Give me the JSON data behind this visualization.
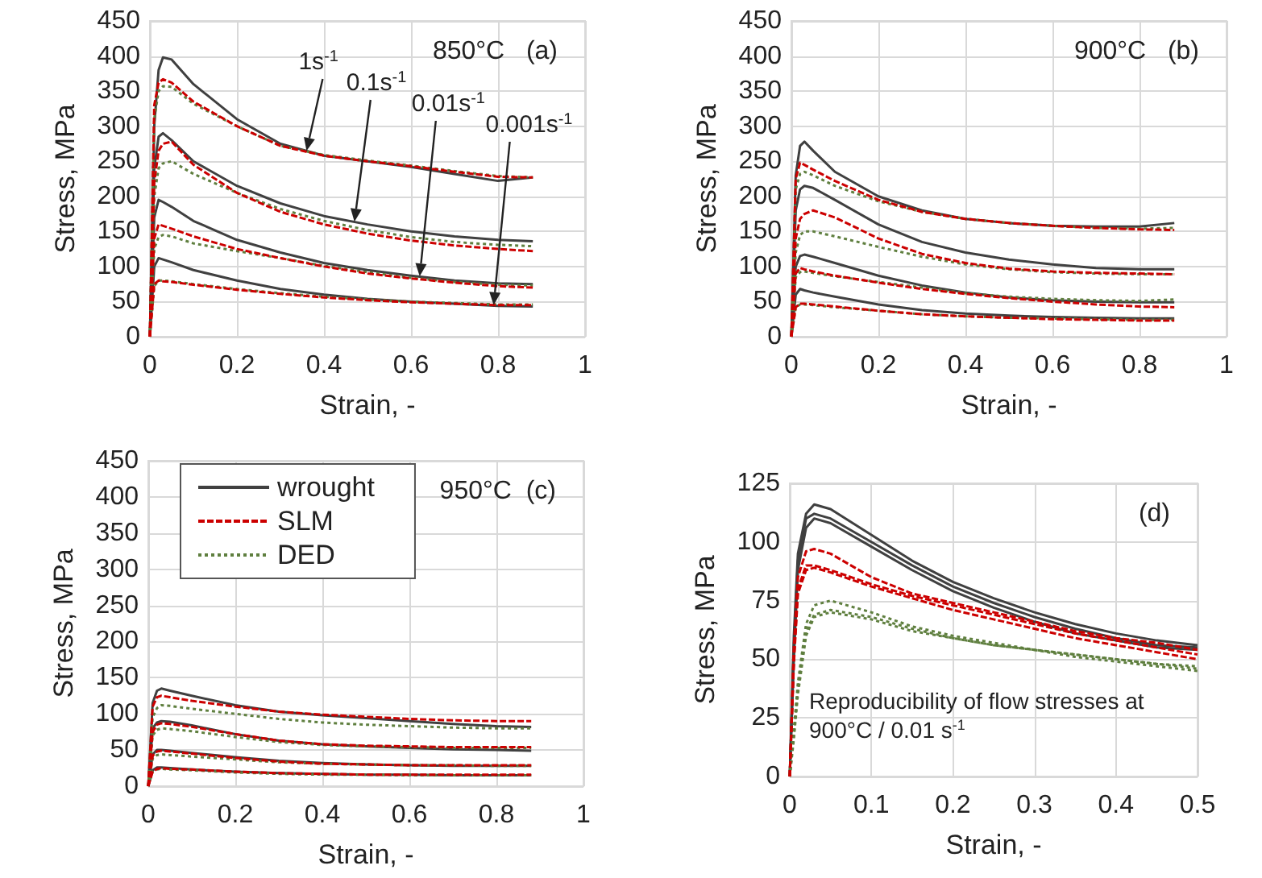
{
  "chart_data": [
    {
      "type": "line",
      "title": "850°C   (a)",
      "xlabel": "Strain, -",
      "ylabel": "Stress, MPa",
      "xlim": [
        0,
        1
      ],
      "xticks": [
        0,
        0.2,
        0.4,
        0.6,
        0.8,
        1
      ],
      "ylim": [
        0,
        450
      ],
      "yticks": [
        0,
        50,
        100,
        150,
        200,
        250,
        300,
        350,
        400,
        450
      ],
      "grid": true,
      "marker": "none",
      "x": [
        0,
        0.01,
        0.02,
        0.03,
        0.05,
        0.1,
        0.2,
        0.3,
        0.4,
        0.5,
        0.6,
        0.7,
        0.8,
        0.88
      ],
      "annotations": [
        {
          "text": "1s$^{-1}$",
          "x": 0.36,
          "y": 265
        },
        {
          "text": "0.1s$^{-1}$",
          "x": 0.47,
          "y": 164
        },
        {
          "text": "0.01s$^{-1}$",
          "x": 0.62,
          "y": 86
        },
        {
          "text": "0.001s$^{-1}$",
          "x": 0.79,
          "y": 45
        }
      ],
      "series": [
        {
          "color": "#404040",
          "line_style": "solid",
          "values": [
            0,
            300,
            380,
            398,
            395,
            360,
            310,
            275,
            258,
            250,
            242,
            232,
            222,
            227
          ]
        },
        {
          "color": "#cc0000",
          "line_style": "dashed",
          "values": [
            0,
            330,
            362,
            367,
            362,
            335,
            300,
            272,
            258,
            250,
            243,
            235,
            228,
            227
          ]
        },
        {
          "color": "#5f7f3f",
          "line_style": "dotted",
          "values": [
            0,
            310,
            350,
            357,
            356,
            332,
            300,
            272,
            259,
            251,
            244,
            236,
            229,
            227
          ]
        },
        {
          "color": "#404040",
          "line_style": "solid",
          "values": [
            0,
            240,
            285,
            290,
            280,
            250,
            215,
            190,
            172,
            160,
            150,
            143,
            138,
            136
          ]
        },
        {
          "color": "#cc0000",
          "line_style": "dashed",
          "values": [
            0,
            220,
            265,
            275,
            278,
            245,
            205,
            178,
            160,
            147,
            137,
            130,
            125,
            122
          ]
        },
        {
          "color": "#5f7f3f",
          "line_style": "dotted",
          "values": [
            0,
            200,
            240,
            247,
            250,
            232,
            205,
            182,
            165,
            152,
            142,
            135,
            131,
            129
          ]
        },
        {
          "color": "#404040",
          "line_style": "solid",
          "values": [
            0,
            170,
            195,
            192,
            185,
            165,
            138,
            120,
            105,
            95,
            87,
            80,
            76,
            75
          ]
        },
        {
          "color": "#cc0000",
          "line_style": "dashed",
          "values": [
            0,
            140,
            160,
            158,
            154,
            143,
            125,
            112,
            100,
            90,
            83,
            77,
            72,
            70
          ]
        },
        {
          "color": "#5f7f3f",
          "line_style": "dotted",
          "values": [
            0,
            125,
            142,
            145,
            143,
            133,
            122,
            112,
            101,
            92,
            84,
            78,
            74,
            73
          ]
        },
        {
          "color": "#404040",
          "line_style": "solid",
          "values": [
            0,
            100,
            112,
            110,
            106,
            95,
            80,
            68,
            60,
            54,
            50,
            47,
            44,
            43
          ]
        },
        {
          "color": "#cc0000",
          "line_style": "dashed",
          "values": [
            0,
            75,
            80,
            79,
            78,
            74,
            67,
            61,
            56,
            52,
            49,
            47,
            45,
            45
          ]
        },
        {
          "color": "#5f7f3f",
          "line_style": "dotted",
          "values": [
            0,
            72,
            80,
            80,
            79,
            75,
            68,
            62,
            57,
            53,
            50,
            48,
            46,
            46
          ]
        }
      ]
    },
    {
      "type": "line",
      "title": "900°C   (b)",
      "xlabel": "Strain, -",
      "ylabel": "Stress, MPa",
      "xlim": [
        0,
        1
      ],
      "xticks": [
        0,
        0.2,
        0.4,
        0.6,
        0.8,
        1
      ],
      "ylim": [
        0,
        450
      ],
      "yticks": [
        0,
        50,
        100,
        150,
        200,
        250,
        300,
        350,
        400,
        450
      ],
      "grid": true,
      "marker": "none",
      "x": [
        0,
        0.01,
        0.02,
        0.03,
        0.05,
        0.1,
        0.2,
        0.3,
        0.4,
        0.5,
        0.6,
        0.7,
        0.8,
        0.88
      ],
      "series": [
        {
          "color": "#404040",
          "line_style": "solid",
          "values": [
            0,
            230,
            272,
            278,
            265,
            235,
            200,
            180,
            168,
            162,
            158,
            157,
            157,
            162
          ]
        },
        {
          "color": "#cc0000",
          "line_style": "dashed",
          "values": [
            0,
            225,
            248,
            245,
            238,
            222,
            195,
            178,
            168,
            162,
            158,
            155,
            153,
            152
          ]
        },
        {
          "color": "#5f7f3f",
          "line_style": "dotted",
          "values": [
            0,
            210,
            232,
            235,
            230,
            215,
            193,
            178,
            168,
            162,
            158,
            155,
            154,
            155
          ]
        },
        {
          "color": "#404040",
          "line_style": "solid",
          "values": [
            0,
            180,
            210,
            215,
            212,
            195,
            160,
            135,
            120,
            110,
            103,
            98,
            96,
            96
          ]
        },
        {
          "color": "#cc0000",
          "line_style": "dashed",
          "values": [
            0,
            140,
            168,
            175,
            180,
            170,
            140,
            118,
            105,
            97,
            93,
            91,
            90,
            89
          ]
        },
        {
          "color": "#5f7f3f",
          "line_style": "dotted",
          "values": [
            0,
            120,
            145,
            150,
            150,
            143,
            128,
            114,
            103,
            96,
            92,
            90,
            89,
            89
          ]
        },
        {
          "color": "#404040",
          "line_style": "solid",
          "values": [
            0,
            100,
            115,
            117,
            114,
            105,
            87,
            73,
            63,
            56,
            52,
            50,
            49,
            49
          ]
        },
        {
          "color": "#cc0000",
          "line_style": "dashed",
          "values": [
            0,
            90,
            98,
            96,
            93,
            87,
            77,
            68,
            61,
            55,
            50,
            46,
            43,
            42
          ]
        },
        {
          "color": "#5f7f3f",
          "line_style": "dotted",
          "values": [
            0,
            85,
            92,
            93,
            91,
            86,
            78,
            70,
            62,
            57,
            54,
            52,
            51,
            53
          ]
        },
        {
          "color": "#404040",
          "line_style": "solid",
          "values": [
            0,
            60,
            68,
            66,
            63,
            57,
            46,
            38,
            33,
            30,
            28,
            27,
            26,
            26
          ]
        },
        {
          "color": "#cc0000",
          "line_style": "dashed",
          "values": [
            0,
            42,
            47,
            47,
            46,
            43,
            37,
            32,
            29,
            27,
            25,
            24,
            23,
            23
          ]
        },
        {
          "color": "#5f7f3f",
          "line_style": "dotted",
          "values": [
            0,
            42,
            46,
            46,
            45,
            42,
            37,
            32,
            29,
            27,
            26,
            25,
            24,
            24
          ]
        }
      ]
    },
    {
      "type": "line",
      "title": "950°C  (c)",
      "xlabel": "Strain, -",
      "ylabel": "Stress, MPa",
      "xlim": [
        0,
        1
      ],
      "xticks": [
        0,
        0.2,
        0.4,
        0.6,
        0.8,
        1
      ],
      "ylim": [
        0,
        450
      ],
      "yticks": [
        0,
        50,
        100,
        150,
        200,
        250,
        300,
        350,
        400,
        450
      ],
      "grid": true,
      "marker": "none",
      "legend": "top left",
      "x": [
        0,
        0.01,
        0.02,
        0.03,
        0.05,
        0.1,
        0.2,
        0.3,
        0.4,
        0.5,
        0.6,
        0.7,
        0.8,
        0.88
      ],
      "series": [
        {
          "name": "wrought",
          "color": "#404040",
          "line_style": "solid",
          "values": [
            0,
            115,
            132,
            135,
            132,
            125,
            112,
            103,
            98,
            94,
            90,
            86,
            83,
            82
          ]
        },
        {
          "name": "SLM",
          "color": "#cc0000",
          "line_style": "dashed",
          "values": [
            0,
            110,
            123,
            125,
            123,
            118,
            110,
            103,
            99,
            96,
            93,
            91,
            90,
            90
          ]
        },
        {
          "name": "DED",
          "color": "#5f7f3f",
          "line_style": "dotted",
          "values": [
            0,
            95,
            108,
            112,
            111,
            107,
            100,
            93,
            88,
            85,
            83,
            81,
            80,
            80
          ]
        },
        {
          "color": "#404040",
          "line_style": "solid",
          "values": [
            0,
            80,
            88,
            90,
            89,
            84,
            72,
            63,
            58,
            55,
            53,
            51,
            50,
            49
          ]
        },
        {
          "color": "#cc0000",
          "line_style": "dashed",
          "values": [
            0,
            75,
            85,
            87,
            86,
            82,
            72,
            63,
            58,
            56,
            55,
            54,
            54,
            54
          ]
        },
        {
          "color": "#5f7f3f",
          "line_style": "dotted",
          "values": [
            0,
            70,
            78,
            80,
            79,
            76,
            68,
            61,
            57,
            55,
            54,
            53,
            53,
            53
          ]
        },
        {
          "color": "#404040",
          "line_style": "solid",
          "values": [
            0,
            44,
            50,
            50,
            49,
            46,
            40,
            35,
            32,
            30,
            29,
            28,
            28,
            28
          ]
        },
        {
          "color": "#cc0000",
          "line_style": "dashed",
          "values": [
            0,
            42,
            48,
            49,
            48,
            45,
            39,
            34,
            31,
            30,
            29,
            29,
            29,
            29
          ]
        },
        {
          "color": "#5f7f3f",
          "line_style": "dotted",
          "values": [
            0,
            38,
            43,
            44,
            43,
            41,
            37,
            33,
            31,
            30,
            29,
            29,
            28,
            28
          ]
        },
        {
          "color": "#404040",
          "line_style": "solid",
          "values": [
            0,
            22,
            26,
            26,
            25,
            23,
            20,
            18,
            17,
            16,
            16,
            15,
            15,
            15
          ]
        },
        {
          "color": "#cc0000",
          "line_style": "dashed",
          "values": [
            0,
            20,
            24,
            25,
            24,
            23,
            20,
            18,
            17,
            16,
            16,
            16,
            16,
            16
          ]
        },
        {
          "color": "#5f7f3f",
          "line_style": "dotted",
          "values": [
            0,
            20,
            23,
            24,
            23,
            22,
            19,
            17,
            16,
            16,
            15,
            15,
            15,
            15
          ]
        }
      ]
    },
    {
      "type": "line",
      "title": "(d)",
      "xlabel": "Strain, -",
      "ylabel": "Stress, MPa",
      "xlim": [
        0,
        0.5
      ],
      "xticks": [
        0,
        0.1,
        0.2,
        0.3,
        0.4,
        0.5
      ],
      "ylim": [
        0,
        125
      ],
      "yticks": [
        0,
        25,
        50,
        75,
        100,
        125
      ],
      "grid": true,
      "marker": "none",
      "x": [
        0,
        0.005,
        0.01,
        0.02,
        0.03,
        0.05,
        0.1,
        0.15,
        0.2,
        0.25,
        0.3,
        0.35,
        0.4,
        0.45,
        0.5
      ],
      "annotations": [
        "Reproducibility of flow stresses at 900°C / 0.01 s$^{-1}$"
      ],
      "series": [
        {
          "color": "#404040",
          "line_style": "solid",
          "values": [
            0,
            60,
            95,
            112,
            116,
            114,
            103,
            92,
            83,
            76,
            70,
            65,
            61,
            58,
            56
          ]
        },
        {
          "color": "#404040",
          "line_style": "solid",
          "values": [
            0,
            55,
            92,
            110,
            112,
            110,
            100,
            90,
            81,
            74,
            68,
            63,
            59,
            56,
            55
          ]
        },
        {
          "color": "#404040",
          "line_style": "solid",
          "values": [
            0,
            50,
            88,
            106,
            110,
            108,
            98,
            88,
            79,
            72,
            66,
            61,
            58,
            55,
            54
          ]
        },
        {
          "color": "#cc0000",
          "line_style": "dashed",
          "values": [
            0,
            55,
            85,
            96,
            97,
            95,
            85,
            78,
            74,
            70,
            66,
            62,
            59,
            57,
            54
          ]
        },
        {
          "color": "#cc0000",
          "line_style": "dashed",
          "values": [
            0,
            50,
            80,
            90,
            90,
            88,
            82,
            77,
            73,
            69,
            65,
            61,
            58,
            55,
            52
          ]
        },
        {
          "color": "#cc0000",
          "line_style": "dashed",
          "values": [
            0,
            48,
            78,
            88,
            89,
            87,
            81,
            76,
            71,
            67,
            63,
            59,
            56,
            53,
            50
          ]
        },
        {
          "color": "#5f7f3f",
          "line_style": "dotted",
          "values": [
            0,
            20,
            40,
            65,
            73,
            75,
            70,
            64,
            60,
            57,
            54,
            52,
            50,
            48,
            46
          ]
        },
        {
          "color": "#5f7f3f",
          "line_style": "dotted",
          "values": [
            0,
            18,
            37,
            62,
            69,
            71,
            68,
            63,
            59,
            56,
            54,
            52,
            50,
            48,
            47
          ]
        },
        {
          "color": "#5f7f3f",
          "line_style": "dotted",
          "values": [
            0,
            16,
            35,
            60,
            68,
            70,
            67,
            62,
            59,
            56,
            54,
            51,
            49,
            47,
            45
          ]
        }
      ]
    }
  ]
}
